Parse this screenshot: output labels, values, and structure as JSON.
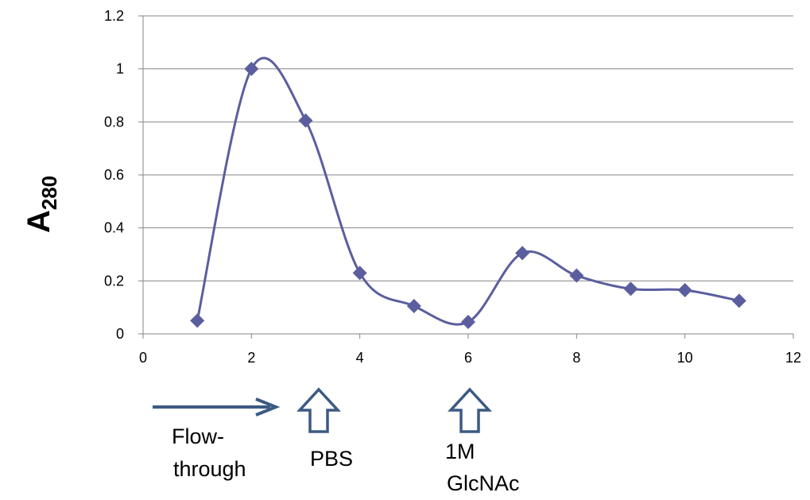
{
  "chart_data": {
    "type": "scatter",
    "smooth_line": true,
    "x": [
      1,
      2,
      3,
      4,
      5,
      6,
      7,
      8,
      9,
      10,
      11
    ],
    "y": [
      0.05,
      1.0,
      0.805,
      0.23,
      0.105,
      0.045,
      0.305,
      0.22,
      0.17,
      0.165,
      0.125
    ],
    "xlim": [
      0,
      12
    ],
    "ylim": [
      0,
      1.2
    ],
    "x_ticks": [
      "0",
      "2",
      "4",
      "6",
      "8",
      "10",
      "12"
    ],
    "y_ticks": [
      "0",
      "0.2",
      "0.4",
      "0.6",
      "0.8",
      "1",
      "1.2"
    ],
    "ylabel_main": "A",
    "ylabel_sub": "280",
    "grid": "horizontal",
    "series_color": "#5b5e9e",
    "marker": "diamond"
  },
  "annotations": {
    "flow_through_line1": "Flow-",
    "flow_through_line2": "through",
    "pbs": "PBS",
    "glcnac_line1": "1M",
    "glcnac_line2": "GlcNAc",
    "arrow_color": "#3c5a82"
  }
}
